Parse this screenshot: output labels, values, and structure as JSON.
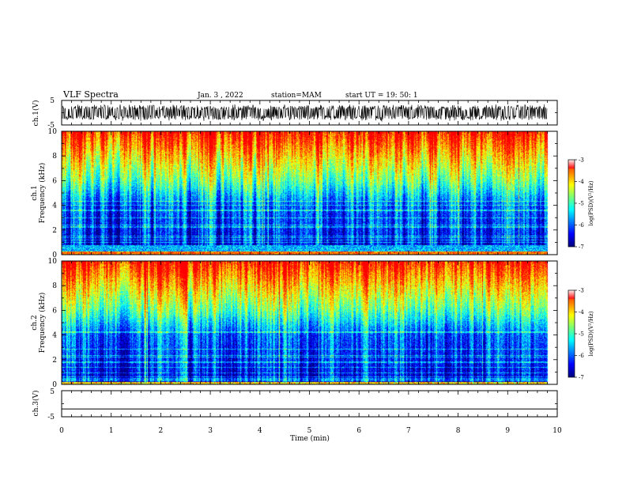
{
  "header": {
    "title": "VLF Spectra",
    "date": "Jan. 3 , 2022",
    "station": "station=MAM",
    "start": "start UT = 19: 50: 1"
  },
  "chart_data": [
    {
      "type": "line",
      "name": "ch1-waveform",
      "ylabel": "ch.1(V)",
      "ylim": [
        -5,
        5
      ],
      "yticks": [
        "5",
        "-5"
      ],
      "xlim": [
        0,
        10
      ],
      "description_values": "dense waveform oscillating roughly between -3 and 3 V over 0-9.8 min"
    },
    {
      "type": "heatmap",
      "name": "ch1-spectrogram",
      "ylabel": "ch.1\nFrequency (kHz)",
      "ylabel_lines": [
        "ch.1",
        "Frequency (kHz)"
      ],
      "ylim": [
        0,
        10
      ],
      "yticks": [
        "0",
        "2",
        "4",
        "6",
        "8",
        "10"
      ],
      "xlim": [
        0,
        10
      ],
      "data_end_min": 9.8,
      "colorbar": {
        "label": "log(PSD)(V²/Hz)",
        "range": [
          -7,
          -3
        ],
        "ticks": [
          "-3",
          "-4",
          "-5",
          "-6",
          "-7"
        ]
      }
    },
    {
      "type": "heatmap",
      "name": "ch2-spectrogram",
      "ylabel": "ch.2\nFrequency (kHz)",
      "ylabel_lines": [
        "ch.2",
        "Frequency (kHz)"
      ],
      "ylim": [
        0,
        10
      ],
      "yticks": [
        "0",
        "2",
        "4",
        "6",
        "8",
        "10"
      ],
      "xlim": [
        0,
        10
      ],
      "data_end_min": 9.8,
      "colorbar": {
        "label": "log(PSD)(V²/Hz)",
        "range": [
          -7,
          -3
        ],
        "ticks": [
          "-3",
          "-4",
          "-5",
          "-6",
          "-7"
        ]
      }
    },
    {
      "type": "line",
      "name": "ch3-waveform",
      "ylabel": "ch.3(V)",
      "ylim": [
        -5,
        5
      ],
      "yticks": [
        "5",
        "-5"
      ],
      "xlim": [
        0,
        10
      ],
      "constant_value": -2,
      "xlabel": "Time (min)",
      "xticks": [
        "0",
        "1",
        "2",
        "3",
        "4",
        "5",
        "6",
        "7",
        "8",
        "9",
        "10"
      ]
    }
  ],
  "colors": {
    "colormap": [
      "#00007f",
      "#0000ff",
      "#0080ff",
      "#00ffff",
      "#80ff80",
      "#ffff00",
      "#ff8000",
      "#ff0000",
      "#ff80c0",
      "#ffffff"
    ]
  }
}
